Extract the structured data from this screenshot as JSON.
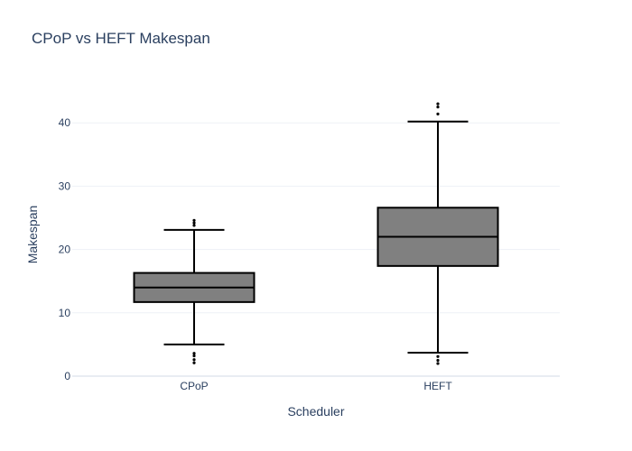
{
  "chart_data": {
    "type": "box",
    "title": "CPoP vs HEFT Makespan",
    "xlabel": "Scheduler",
    "ylabel": "Makespan",
    "categories": [
      "CPoP",
      "HEFT"
    ],
    "ylim": [
      0,
      45
    ],
    "yticks": [
      0,
      10,
      20,
      30,
      40
    ],
    "grid": true,
    "legend": "none",
    "box_color": "#808080",
    "outline_color": "#000000",
    "boxes": [
      {
        "category": "CPoP",
        "lower_fence": 5.0,
        "q1": 11.7,
        "median": 14.0,
        "q3": 16.3,
        "upper_fence": 23.1,
        "outliers": [
          2.1,
          2.6,
          3.2,
          3.6,
          23.8,
          24.2,
          24.6
        ]
      },
      {
        "category": "HEFT",
        "lower_fence": 3.7,
        "q1": 17.4,
        "median": 22.0,
        "q3": 26.6,
        "upper_fence": 40.2,
        "outliers": [
          2.0,
          2.5,
          3.1,
          41.4,
          42.5,
          43.0
        ]
      }
    ]
  }
}
